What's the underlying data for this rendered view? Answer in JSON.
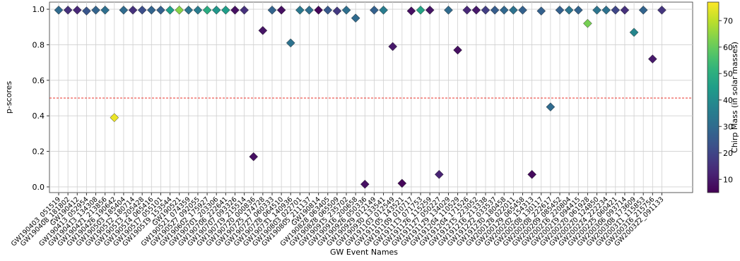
{
  "chart_data": {
    "type": "scatter",
    "xlabel": "GW Event Names",
    "ylabel": "p-scores",
    "categories": [
      "GW190403_051519",
      "GW190408_181802",
      "GW190412",
      "GW190413_052954",
      "GW190413_134308",
      "GW190421_213856",
      "GW190426_190642",
      "GW190503_185404",
      "GW190512_180714",
      "GW190513_205428",
      "GW190514_065416",
      "GW190517_055101",
      "GW190519_153544",
      "GW190521",
      "GW190521_074359",
      "GW190527_092055",
      "GW190602_175927",
      "GW190701_203306",
      "GW190706_222641",
      "GW190707_093326",
      "GW190719_215514",
      "GW190720_000836",
      "GW190725_174728",
      "GW190727_060333",
      "GW190728_064510",
      "GW190731_140936",
      "GW190803_022701",
      "GW190805_211137",
      "GW190814",
      "GW190828_063405",
      "GW190828_065509",
      "GW190915_235702",
      "GW190916_200658",
      "GW190926_050336",
      "GW190929_012149",
      "GW190930_133541",
      "GW191103_012549",
      "GW191105_143521",
      "GW191109_010717",
      "GW191113_071753",
      "GW191126_115259",
      "GW191127_050227",
      "GW191129_134029",
      "GW191204_110529",
      "GW191204_171526",
      "GW191215_223052",
      "GW191216_213338",
      "GW191222_033537",
      "GW191230_180458",
      "GW200128_022011",
      "GW200129_065458",
      "GW200202_154313",
      "GW200208_130117",
      "GW200208_222617",
      "GW200209_085452",
      "GW200216_220804",
      "GW200219_094415",
      "GW200220_061928",
      "GW200220_124850",
      "GW200224_222234",
      "GW200225_060421",
      "GW200306_093714",
      "GW200308_173609",
      "GW200311_115853",
      "GW200316_215756",
      "GW200322_091133"
    ],
    "values": [
      0.995,
      0.995,
      0.995,
      0.99,
      0.995,
      0.995,
      0.39,
      0.995,
      0.995,
      0.995,
      0.995,
      0.995,
      0.995,
      0.995,
      0.995,
      0.995,
      0.995,
      0.995,
      0.995,
      0.995,
      0.995,
      0.17,
      0.88,
      0.995,
      0.995,
      0.81,
      0.995,
      0.995,
      0.995,
      0.995,
      0.99,
      0.995,
      0.95,
      0.015,
      0.995,
      0.995,
      0.79,
      0.02,
      0.99,
      0.995,
      0.995,
      0.07,
      0.995,
      0.77,
      0.995,
      0.995,
      0.995,
      0.995,
      0.995,
      0.995,
      0.995,
      0.07,
      0.99,
      0.45,
      0.995,
      0.995,
      0.995,
      0.92,
      0.995,
      0.995,
      0.995,
      0.995,
      0.87,
      0.995,
      0.72,
      0.995
    ],
    "color_values": [
      30,
      15,
      13,
      24,
      28,
      31,
      75,
      30,
      15,
      22,
      28,
      27,
      45,
      64,
      33,
      35,
      49,
      43,
      45,
      8,
      15,
      8,
      9,
      28,
      8,
      32,
      34,
      31,
      6,
      25,
      17,
      31,
      30,
      8,
      27,
      35,
      10,
      6,
      8,
      47,
      9,
      12,
      30,
      8,
      13,
      10,
      18,
      26,
      29,
      32,
      27,
      7,
      27,
      30,
      27,
      33,
      28,
      62,
      33,
      32,
      20,
      15,
      38,
      28,
      10,
      16
    ],
    "colormap": "viridis",
    "clim": [
      5,
      77
    ],
    "cticks": [
      10,
      20,
      30,
      40,
      50,
      60,
      70
    ],
    "colorbar_label": "Chirp Mass (in solar masses)",
    "ylim": [
      -0.032,
      1.04
    ],
    "yticks": [
      {
        "value": 0,
        "label": "0.0"
      },
      {
        "value": 0.2,
        "label": "0.2"
      },
      {
        "value": 0.4,
        "label": "0.4"
      },
      {
        "value": 0.6,
        "label": "0.6"
      },
      {
        "value": 0.8,
        "label": "0.8"
      },
      {
        "value": 1,
        "label": "1.0"
      }
    ],
    "grid": true,
    "hline": 0.5,
    "hline_color": "#e8312a"
  }
}
